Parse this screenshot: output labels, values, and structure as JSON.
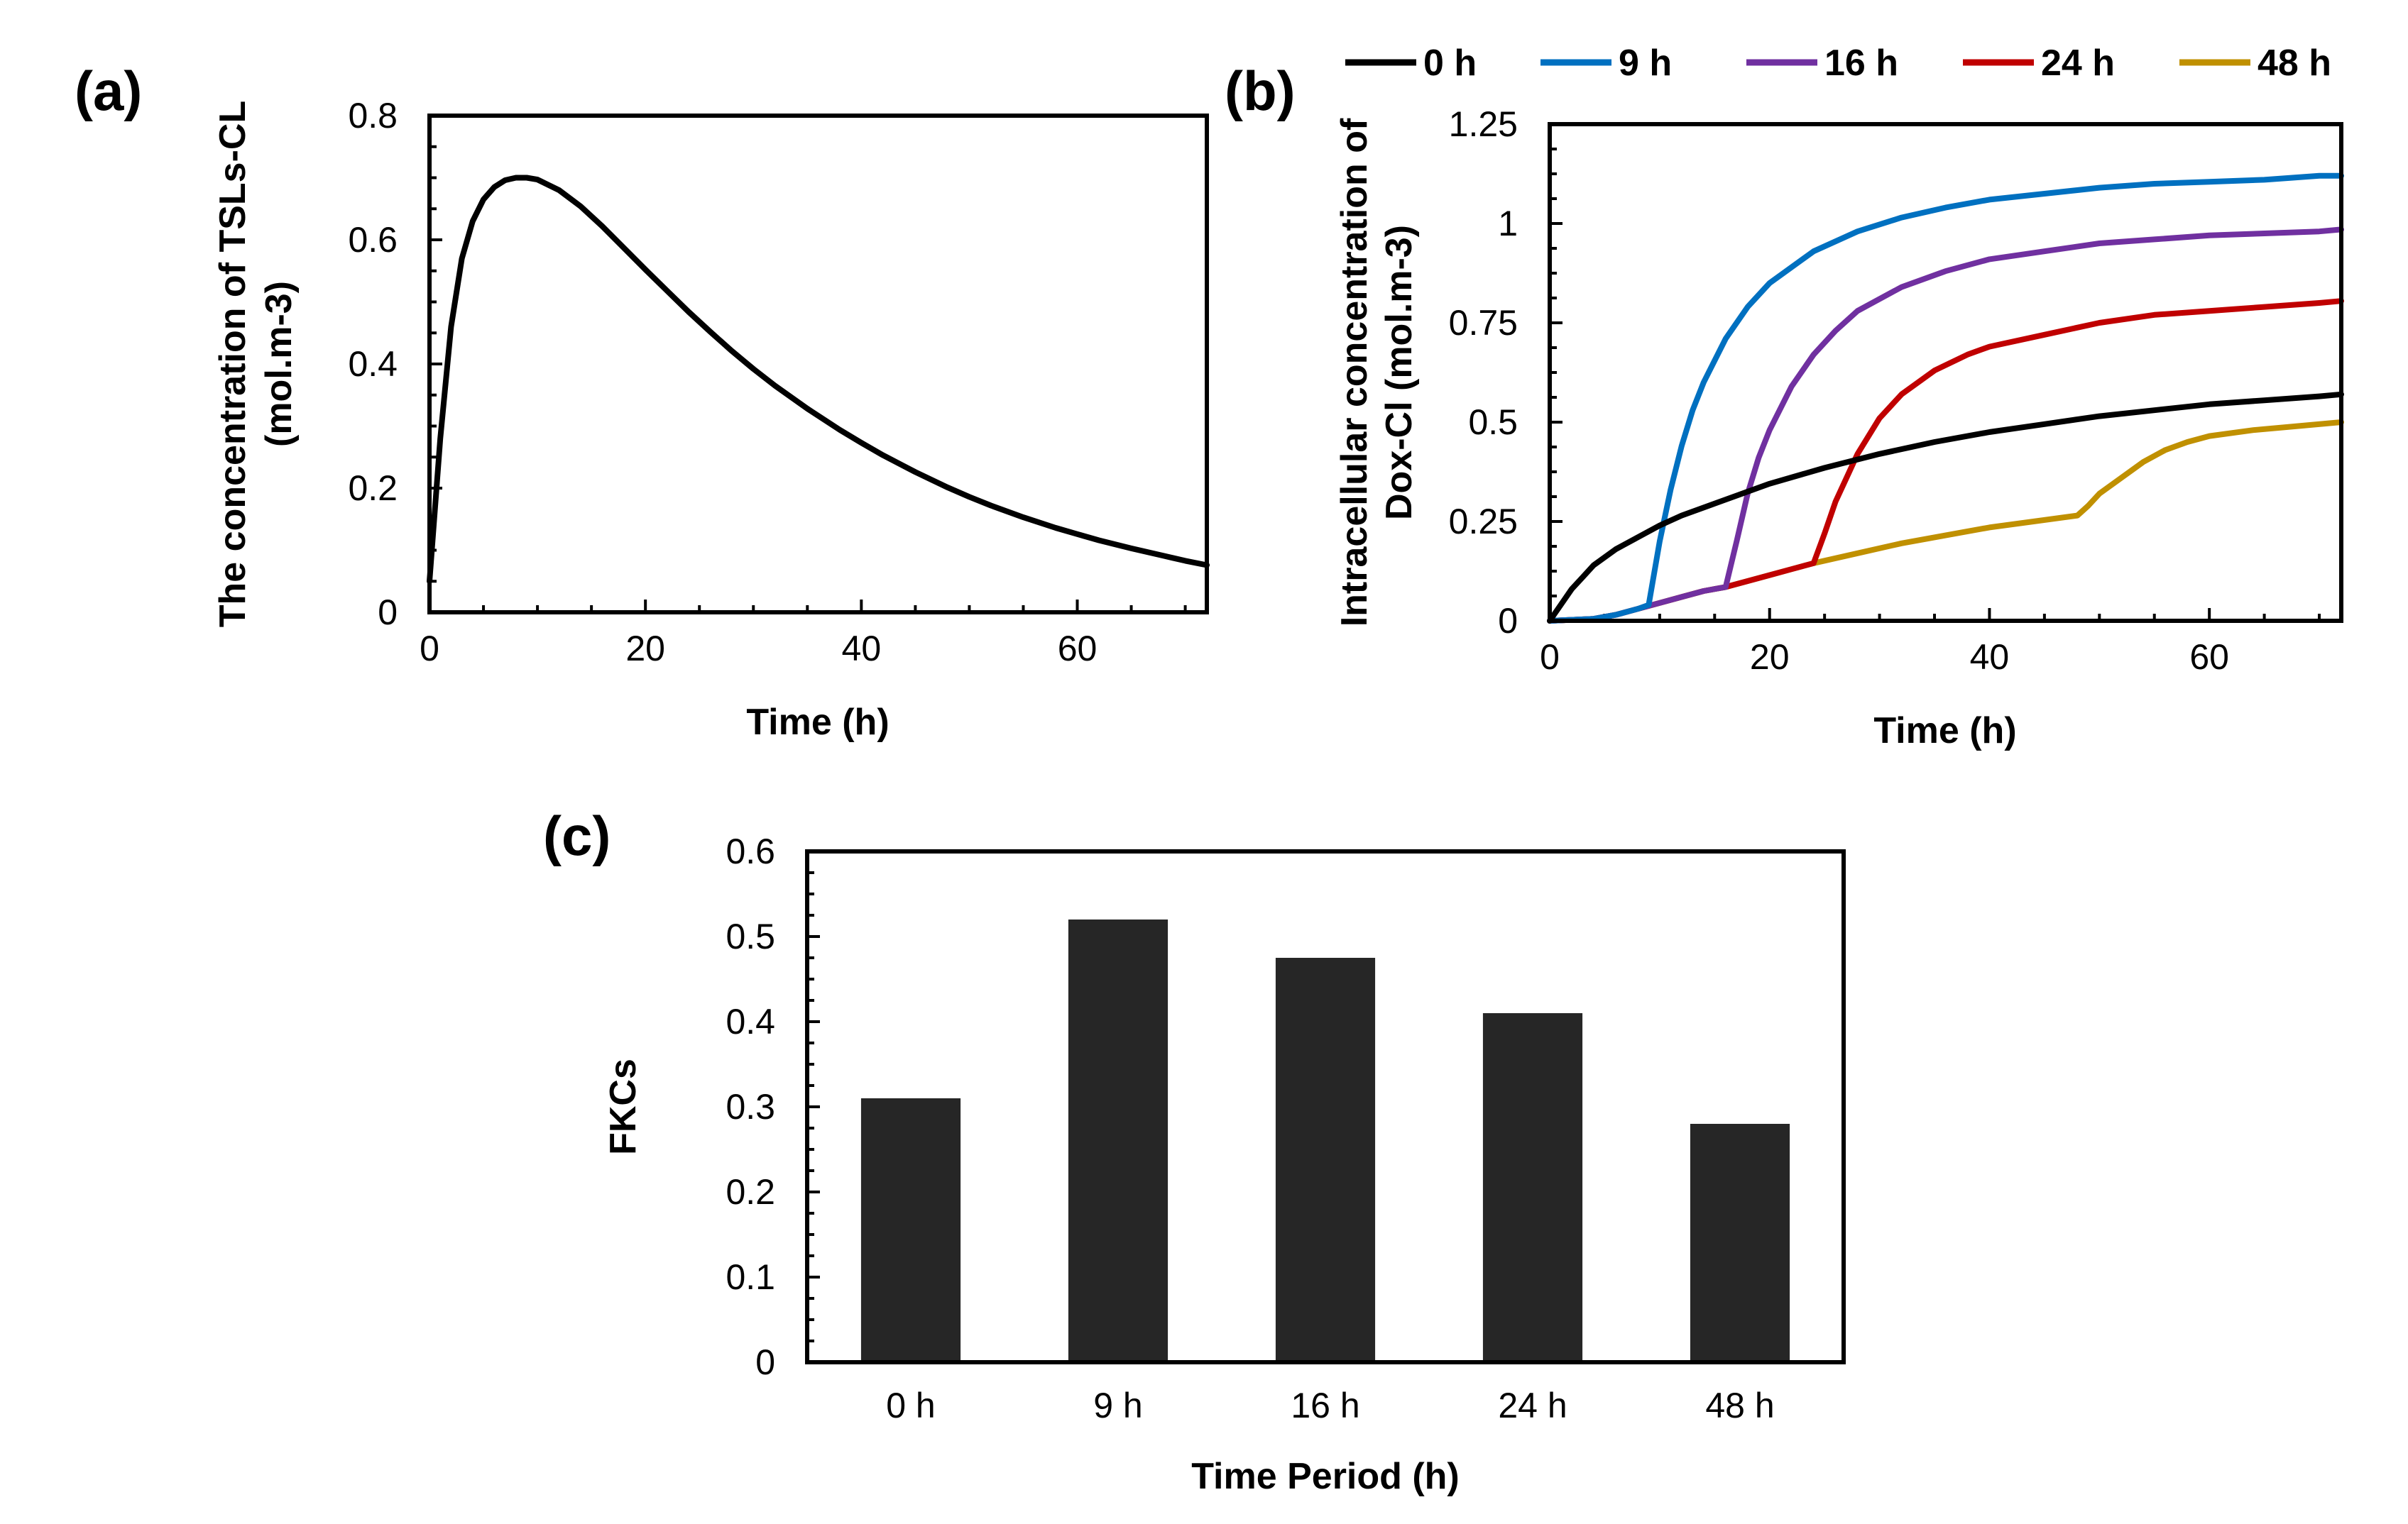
{
  "chart_data": [
    {
      "panel": "(a)",
      "type": "line",
      "title": "",
      "xlabel": "Time (h)",
      "ylabel_line1": "The concentration of TSLs-CL",
      "ylabel_line2": "(mol.m-3)",
      "xlim": [
        0,
        72
      ],
      "ylim": [
        0,
        0.8
      ],
      "xticks": [
        0,
        20,
        40,
        60
      ],
      "yticks": [
        0,
        0.2,
        0.4,
        0.6,
        0.8
      ],
      "xtick_labels": [
        "0",
        "20",
        "40",
        "60"
      ],
      "ytick_labels": [
        "0",
        "0.2",
        "0.4",
        "0.6",
        "0.8"
      ],
      "color": "#000000",
      "series": [
        {
          "name": "TSLs-CL",
          "x": [
            0,
            1,
            2,
            3,
            4,
            5,
            6,
            7,
            8,
            9,
            10,
            12,
            14,
            16,
            18,
            20,
            22,
            24,
            26,
            28,
            30,
            32,
            35,
            38,
            40,
            42,
            45,
            48,
            50,
            52,
            55,
            58,
            60,
            62,
            65,
            68,
            70,
            72
          ],
          "y": [
            0.05,
            0.28,
            0.46,
            0.57,
            0.63,
            0.665,
            0.685,
            0.696,
            0.7,
            0.7,
            0.697,
            0.68,
            0.654,
            0.622,
            0.587,
            0.552,
            0.518,
            0.484,
            0.452,
            0.421,
            0.392,
            0.365,
            0.328,
            0.294,
            0.273,
            0.253,
            0.226,
            0.201,
            0.186,
            0.172,
            0.153,
            0.136,
            0.126,
            0.116,
            0.103,
            0.091,
            0.083,
            0.076
          ]
        }
      ]
    },
    {
      "panel": "(b)",
      "type": "line",
      "title": "",
      "xlabel": "Time (h)",
      "ylabel_line1": "Intracellular  concentration of",
      "ylabel_line2": "Dox-Cl (mol.m-3)",
      "xlim": [
        0,
        72
      ],
      "ylim": [
        0,
        1.25
      ],
      "xticks": [
        0,
        20,
        40,
        60
      ],
      "yticks": [
        0,
        0.25,
        0.5,
        0.75,
        1,
        1.25
      ],
      "xtick_labels": [
        "0",
        "20",
        "40",
        "60"
      ],
      "ytick_labels": [
        "0",
        "0.25",
        "0.5",
        "0.75",
        "1",
        "1.25"
      ],
      "legend_position": "top",
      "series": [
        {
          "name": "0 h",
          "color": "#000000",
          "x": [
            0,
            1,
            2,
            3,
            4,
            6,
            8,
            10,
            12,
            15,
            20,
            25,
            30,
            35,
            40,
            45,
            50,
            55,
            60,
            65,
            70,
            72
          ],
          "y": [
            0,
            0.04,
            0.08,
            0.11,
            0.14,
            0.18,
            0.21,
            0.24,
            0.265,
            0.295,
            0.345,
            0.385,
            0.42,
            0.45,
            0.475,
            0.495,
            0.515,
            0.53,
            0.545,
            0.555,
            0.565,
            0.57
          ]
        },
        {
          "name": "9 h",
          "color": "#0070C0",
          "x": [
            0,
            4,
            6,
            8,
            9,
            10,
            11,
            12,
            13,
            14,
            16,
            18,
            20,
            24,
            28,
            32,
            36,
            40,
            45,
            50,
            55,
            60,
            65,
            70,
            72
          ],
          "y": [
            0,
            0.005,
            0.015,
            0.03,
            0.04,
            0.2,
            0.33,
            0.44,
            0.53,
            0.6,
            0.71,
            0.79,
            0.85,
            0.93,
            0.98,
            1.015,
            1.04,
            1.06,
            1.075,
            1.09,
            1.1,
            1.105,
            1.11,
            1.12,
            1.12
          ]
        },
        {
          "name": "16 h",
          "color": "#7030A0",
          "x": [
            0,
            4,
            6,
            8,
            10,
            12,
            14,
            16,
            17,
            18,
            19,
            20,
            22,
            24,
            26,
            28,
            32,
            36,
            40,
            45,
            50,
            55,
            60,
            65,
            70,
            72
          ],
          "y": [
            0,
            0.005,
            0.015,
            0.03,
            0.045,
            0.06,
            0.075,
            0.085,
            0.2,
            0.32,
            0.41,
            0.48,
            0.59,
            0.67,
            0.73,
            0.78,
            0.84,
            0.88,
            0.91,
            0.93,
            0.95,
            0.96,
            0.97,
            0.975,
            0.98,
            0.985
          ]
        },
        {
          "name": "24 h",
          "color": "#C00000",
          "x": [
            0,
            4,
            6,
            8,
            10,
            12,
            14,
            16,
            18,
            20,
            22,
            24,
            25,
            26,
            27,
            28,
            30,
            32,
            35,
            38,
            40,
            45,
            50,
            55,
            60,
            65,
            70,
            72
          ],
          "y": [
            0,
            0.005,
            0.015,
            0.03,
            0.045,
            0.06,
            0.075,
            0.085,
            0.1,
            0.115,
            0.13,
            0.145,
            0.22,
            0.3,
            0.36,
            0.42,
            0.51,
            0.57,
            0.63,
            0.67,
            0.69,
            0.72,
            0.75,
            0.77,
            0.78,
            0.79,
            0.8,
            0.805
          ]
        },
        {
          "name": "48 h",
          "color": "#C09000",
          "x": [
            0,
            4,
            6,
            8,
            10,
            12,
            14,
            16,
            18,
            20,
            22,
            24,
            28,
            32,
            36,
            40,
            44,
            48,
            49,
            50,
            52,
            54,
            56,
            58,
            60,
            64,
            68,
            72
          ],
          "y": [
            0,
            0.005,
            0.015,
            0.03,
            0.045,
            0.06,
            0.075,
            0.085,
            0.1,
            0.115,
            0.13,
            0.145,
            0.17,
            0.195,
            0.215,
            0.235,
            0.25,
            0.265,
            0.29,
            0.32,
            0.36,
            0.4,
            0.43,
            0.45,
            0.465,
            0.48,
            0.49,
            0.5
          ]
        }
      ]
    },
    {
      "panel": "(c)",
      "type": "bar",
      "title": "",
      "xlabel": "Time Period (h)",
      "ylabel": "FKCs",
      "categories": [
        "0 h",
        "9 h",
        "16 h",
        "24 h",
        "48 h"
      ],
      "values": [
        0.31,
        0.52,
        0.475,
        0.41,
        0.28
      ],
      "ylim": [
        0,
        0.6
      ],
      "yticks": [
        0,
        0.1,
        0.2,
        0.3,
        0.4,
        0.5,
        0.6
      ],
      "ytick_labels": [
        "0",
        "0.1",
        "0.2",
        "0.3",
        "0.4",
        "0.5",
        "0.6"
      ],
      "bar_color": "#262626"
    }
  ]
}
